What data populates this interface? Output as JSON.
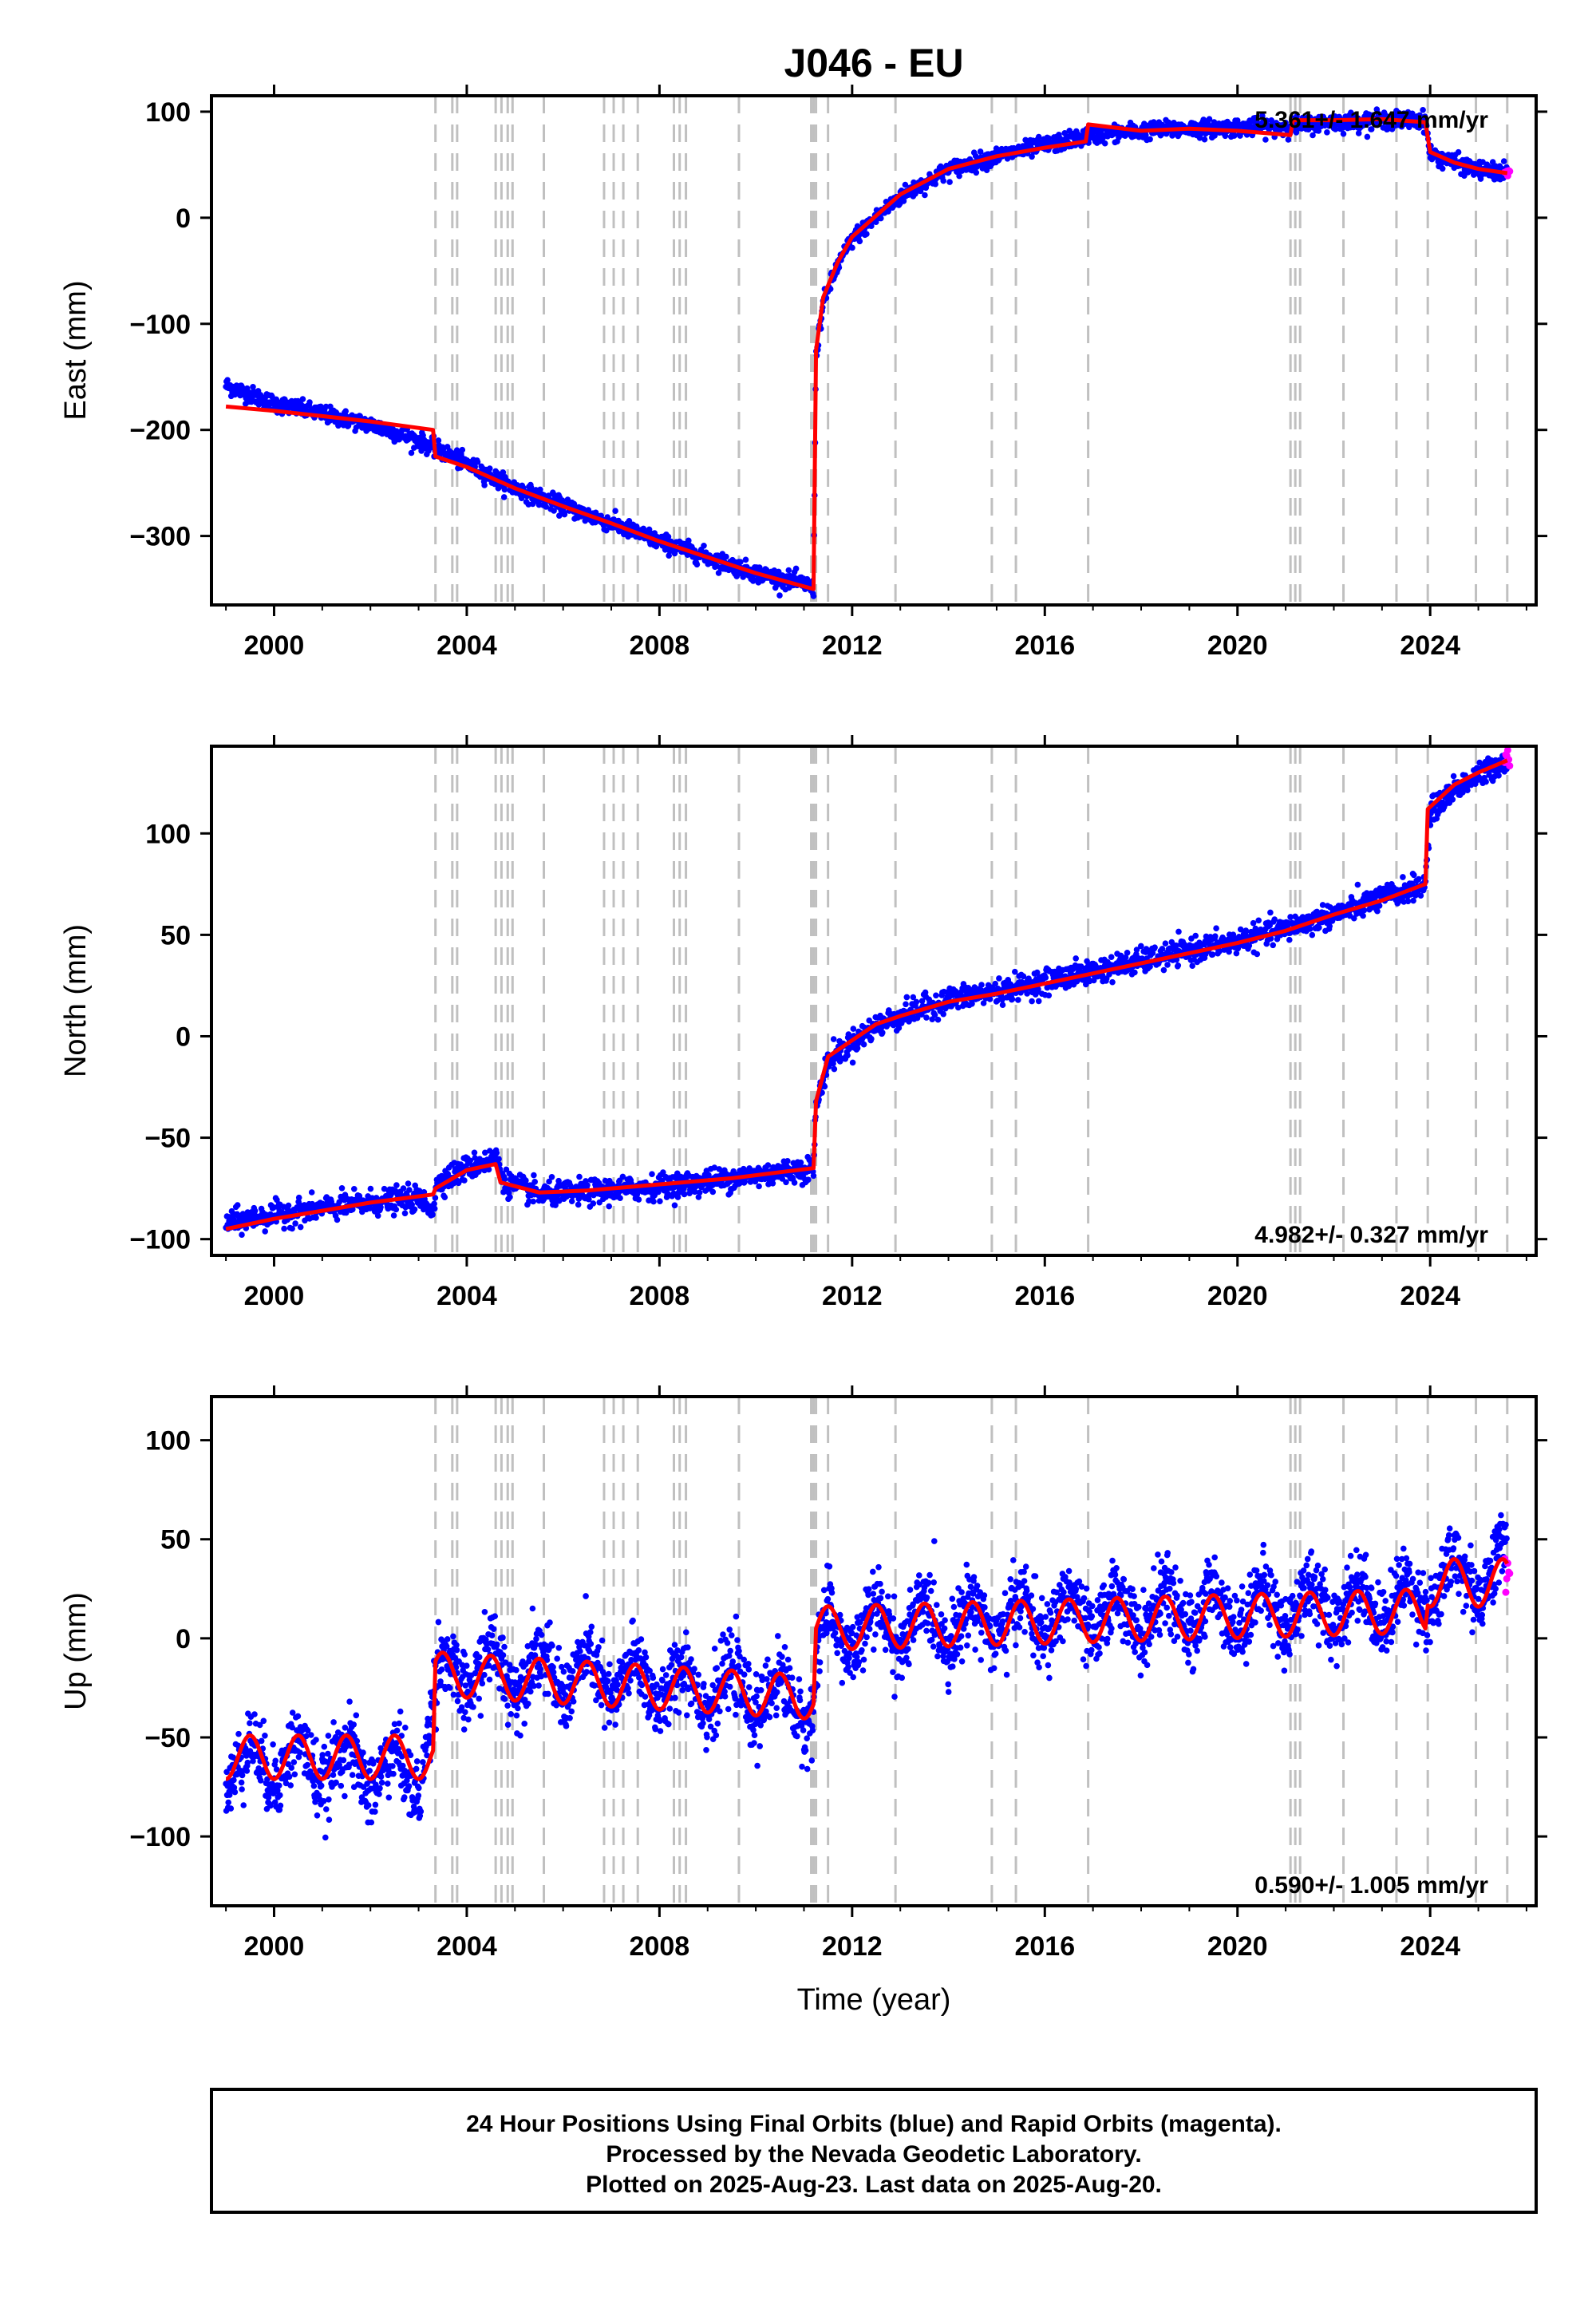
{
  "title": "J046 - EU",
  "colors": {
    "final_orbits": "#0000ff",
    "rapid_orbits": "#ff00ff",
    "model": "#ff0000",
    "event_lines": "#c0c0c0"
  },
  "footer": {
    "line1": "24 Hour Positions Using Final Orbits (blue) and Rapid Orbits (magenta).",
    "line2": "Processed by the Nevada Geodetic Laboratory.",
    "line3": "Plotted on 2025-Aug-23. Last data on 2025-Aug-20."
  },
  "chart_data": [
    {
      "type": "scatter",
      "ylabel": "East (mm)",
      "xlabel": "",
      "rate_label": "5.361+/- 1.647 mm/yr",
      "rate_position": "top-right",
      "xlim": [
        1998.7,
        2026.2
      ],
      "ylim": [
        -365,
        115
      ],
      "x_ticks": [
        2000,
        2004,
        2008,
        2012,
        2016,
        2020,
        2024
      ],
      "y_ticks": [
        100,
        0,
        -100,
        -200,
        -300
      ],
      "event_lines": [
        2003.35,
        2003.7,
        2003.8,
        2004.6,
        2004.72,
        2004.85,
        2004.95,
        2005.6,
        2006.85,
        2007.05,
        2007.25,
        2007.55,
        2008.3,
        2008.42,
        2008.55,
        2009.65,
        2011.15,
        2011.2,
        2011.25,
        2011.5,
        2012.9,
        2014.9,
        2015.4,
        2016.9,
        2021.1,
        2021.2,
        2021.3,
        2022.2,
        2023.3,
        2023.95,
        2024.95,
        2025.6
      ],
      "series": [
        {
          "x": [
            1999.0,
            2000.0,
            2001.0,
            2002.0,
            2003.0,
            2004.0,
            2005.0,
            2006.0,
            2007.0,
            2008.0,
            2009.0,
            2010.0,
            2011.0,
            2011.2,
            2011.25,
            2011.4,
            2011.7,
            2012.0,
            2012.5,
            2013.0,
            2014.0,
            2015.0,
            2016.0,
            2017.0,
            2018.0,
            2019.0,
            2020.0,
            2021.0,
            2022.0,
            2023.0,
            2023.9,
            2024.0,
            2024.5,
            2025.0,
            2025.6
          ],
          "y": [
            -158,
            -175,
            -185,
            -195,
            -210,
            -232,
            -255,
            -272,
            -288,
            -305,
            -320,
            -335,
            -345,
            -350,
            -130,
            -80,
            -45,
            -20,
            0,
            20,
            45,
            58,
            68,
            78,
            82,
            84,
            85,
            86,
            90,
            92,
            92,
            60,
            52,
            45,
            42
          ]
        }
      ],
      "model_line": {
        "x": [
          1999.0,
          2000.0,
          2001.0,
          2002.0,
          2003.3,
          2003.35,
          2004.0,
          2005.0,
          2006.0,
          2007.0,
          2008.0,
          2009.0,
          2010.0,
          2011.2,
          2011.25,
          2011.4,
          2011.7,
          2012.0,
          2012.5,
          2013.0,
          2014.0,
          2015.0,
          2016.0,
          2016.85,
          2016.9,
          2018.0,
          2019.0,
          2020.0,
          2021.1,
          2021.15,
          2022.0,
          2023.0,
          2023.9,
          2024.0,
          2024.5,
          2025.0,
          2025.6
        ],
        "y": [
          -178,
          -182,
          -187,
          -192,
          -200,
          -225,
          -235,
          -255,
          -272,
          -288,
          -305,
          -320,
          -335,
          -350,
          -125,
          -75,
          -42,
          -18,
          2,
          22,
          46,
          58,
          66,
          72,
          88,
          82,
          84,
          82,
          78,
          92,
          92,
          93,
          90,
          62,
          52,
          46,
          42
        ]
      }
    },
    {
      "type": "scatter",
      "ylabel": "North (mm)",
      "xlabel": "",
      "rate_label": "4.982+/- 0.327 mm/yr",
      "rate_position": "bottom-right",
      "xlim": [
        1998.7,
        2026.2
      ],
      "ylim": [
        -108,
        143
      ],
      "x_ticks": [
        2000,
        2004,
        2008,
        2012,
        2016,
        2020,
        2024
      ],
      "y_ticks": [
        100,
        50,
        0,
        -50,
        -100
      ],
      "event_lines": [
        2003.35,
        2003.7,
        2003.8,
        2004.6,
        2004.72,
        2004.85,
        2004.95,
        2005.6,
        2006.85,
        2007.05,
        2007.25,
        2007.55,
        2008.3,
        2008.42,
        2008.55,
        2009.65,
        2011.15,
        2011.2,
        2011.25,
        2011.5,
        2012.9,
        2014.9,
        2015.4,
        2016.9,
        2021.1,
        2021.2,
        2021.3,
        2022.2,
        2023.3,
        2023.95,
        2024.95,
        2025.6
      ],
      "series": [
        {
          "x": [
            1999.0,
            2000.0,
            2001.0,
            2002.0,
            2003.0,
            2003.3,
            2003.4,
            2004.0,
            2004.6,
            2004.8,
            2005.5,
            2006.5,
            2007.5,
            2008.5,
            2009.5,
            2010.5,
            2011.2,
            2011.25,
            2011.5,
            2012.0,
            2012.5,
            2013.0,
            2014.0,
            2015.0,
            2016.0,
            2017.0,
            2018.0,
            2019.0,
            2020.0,
            2021.0,
            2022.0,
            2023.0,
            2023.9,
            2024.0,
            2024.5,
            2025.0,
            2025.6
          ],
          "y": [
            -92,
            -88,
            -85,
            -82,
            -80,
            -85,
            -72,
            -65,
            -60,
            -72,
            -78,
            -77,
            -75,
            -73,
            -70,
            -67,
            -65,
            -35,
            -12,
            -3,
            5,
            10,
            18,
            22,
            27,
            32,
            37,
            42,
            47,
            53,
            60,
            68,
            75,
            110,
            122,
            128,
            137
          ]
        }
      ],
      "model_line": {
        "x": [
          1999.0,
          2000.0,
          2001.0,
          2002.0,
          2003.3,
          2003.35,
          2004.0,
          2004.6,
          2004.7,
          2005.5,
          2006.5,
          2007.5,
          2008.5,
          2009.5,
          2010.5,
          2011.2,
          2011.25,
          2011.5,
          2012.0,
          2012.5,
          2013.0,
          2014.0,
          2015.0,
          2016.0,
          2017.0,
          2018.0,
          2019.0,
          2020.0,
          2021.0,
          2022.0,
          2023.0,
          2023.9,
          2023.95,
          2024.5,
          2025.0,
          2025.6
        ],
        "y": [
          -95,
          -90,
          -86,
          -82,
          -78,
          -75,
          -66,
          -63,
          -72,
          -77,
          -76,
          -74,
          -72,
          -70,
          -67,
          -65,
          -32,
          -10,
          -2,
          6,
          10,
          17,
          21,
          26,
          31,
          36,
          41,
          46,
          52,
          60,
          67,
          75,
          112,
          124,
          130,
          136
        ]
      }
    },
    {
      "type": "scatter",
      "ylabel": "Up (mm)",
      "xlabel": "Time (year)",
      "rate_label": "0.590+/- 1.005 mm/yr",
      "rate_position": "bottom-right",
      "xlim": [
        1998.7,
        2026.2
      ],
      "ylim": [
        -135,
        122
      ],
      "x_ticks": [
        2000,
        2004,
        2008,
        2012,
        2016,
        2020,
        2024
      ],
      "y_ticks": [
        100,
        50,
        0,
        -50,
        -100
      ],
      "event_lines": [
        2003.35,
        2003.7,
        2003.8,
        2004.6,
        2004.72,
        2004.85,
        2004.95,
        2005.6,
        2006.85,
        2007.05,
        2007.25,
        2007.55,
        2008.3,
        2008.42,
        2008.55,
        2009.65,
        2011.15,
        2011.2,
        2011.25,
        2011.5,
        2012.9,
        2014.9,
        2015.4,
        2016.9,
        2021.1,
        2021.2,
        2021.3,
        2022.2,
        2023.3,
        2023.95,
        2024.95,
        2025.6
      ],
      "series": [
        {
          "x": [
            1999.0,
            2000.0,
            2001.0,
            2002.0,
            2003.0,
            2003.4,
            2004.5,
            2006.0,
            2007.5,
            2009.0,
            2010.5,
            2011.2,
            2011.3,
            2012.5,
            2014.0,
            2015.5,
            2017.0,
            2018.5,
            2019.5,
            2020.5,
            2022.0,
            2023.5,
            2024.5,
            2025.6
          ],
          "y": [
            -65,
            -62,
            -63,
            -65,
            -70,
            -20,
            -15,
            -18,
            -22,
            -25,
            -30,
            -35,
            0,
            5,
            8,
            10,
            12,
            13,
            14,
            15,
            17,
            18,
            30,
            35
          ]
        }
      ],
      "model_line": {
        "type": "annual_sine",
        "segments": [
          {
            "x": [
              1999.0,
              2003.3
            ],
            "base": -60,
            "amp": 11
          },
          {
            "x": [
              2003.35,
              2011.2
            ],
            "base": -18,
            "amp": 11,
            "trend": -1.5
          },
          {
            "x": [
              2011.25,
              2023.9
            ],
            "base": 5,
            "amp": 11,
            "trend": 0.7
          },
          {
            "x": [
              2023.95,
              2025.6
            ],
            "base": 28,
            "amp": 12
          }
        ]
      }
    }
  ]
}
